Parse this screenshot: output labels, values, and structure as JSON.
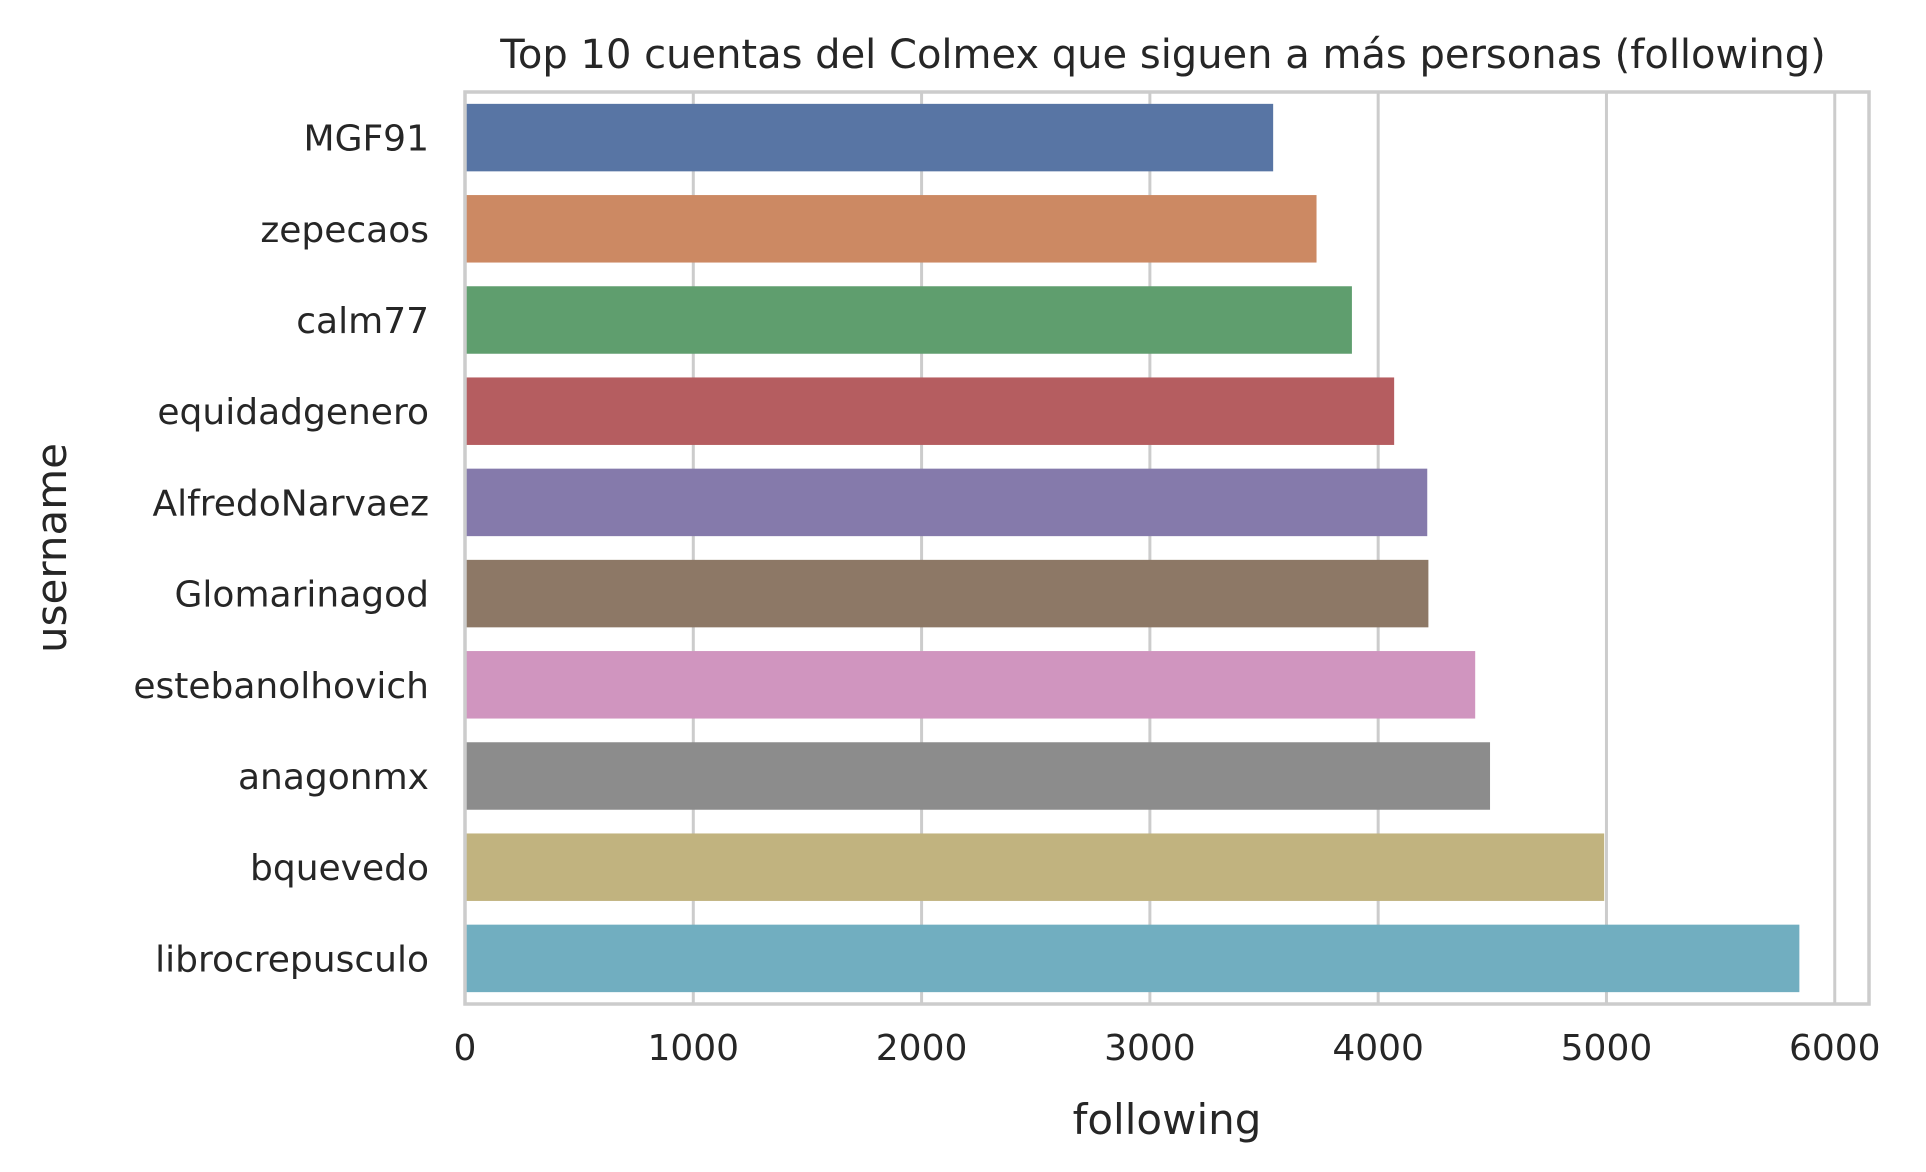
{
  "chart_data": {
    "type": "bar",
    "orientation": "horizontal",
    "title": "Top 10 cuentas del Colmex que siguen a más personas (following)",
    "xlabel": "following",
    "ylabel": "username",
    "xlim": [
      0,
      6150
    ],
    "xticks": [
      0,
      1000,
      2000,
      3000,
      4000,
      5000,
      6000
    ],
    "grid": true,
    "categories": [
      "MGF91",
      "zepecaos",
      "calm77",
      "equidadgenero",
      "AlfredoNarvaez",
      "Glomarinagod ",
      "estebanolhovich",
      "anagonmx",
      "bquevedo",
      "librocrepusculo"
    ],
    "values": [
      3540,
      3730,
      3885,
      4070,
      4215,
      4220,
      4425,
      4490,
      4990,
      5845
    ],
    "colors": [
      "#5875a4",
      "#cc8963",
      "#5f9e6e",
      "#b55d60",
      "#857aab",
      "#8d7866",
      "#d095bf",
      "#8c8c8c",
      "#c1b37f",
      "#71aec0"
    ]
  }
}
